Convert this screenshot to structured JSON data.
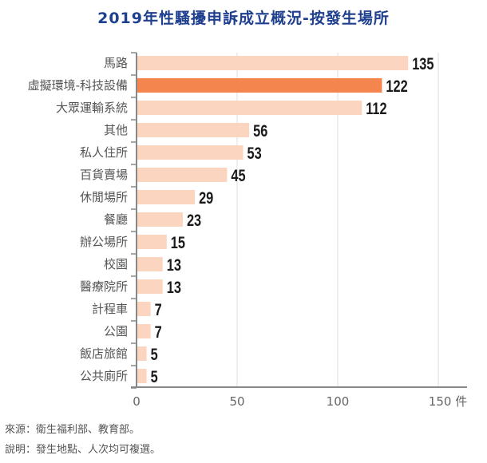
{
  "chart_data": {
    "type": "bar",
    "orientation": "horizontal",
    "title": "2019年性騷擾申訴成立概況-按發生場所",
    "categories": [
      "馬路",
      "虛擬環境-科技設備",
      "大眾運輸系統",
      "其他",
      "私人住所",
      "百貨賣場",
      "休閒場所",
      "餐廳",
      "辦公場所",
      "校園",
      "醫療院所",
      "計程車",
      "公園",
      "飯店旅館",
      "公共廁所"
    ],
    "values": [
      135,
      122,
      112,
      56,
      53,
      45,
      29,
      23,
      15,
      13,
      13,
      7,
      7,
      5,
      5
    ],
    "highlight_index": 1,
    "xlabel": "",
    "ylabel": "",
    "xlim": [
      0,
      155
    ],
    "xticks": [
      0,
      50,
      100,
      150
    ],
    "xtick_labels": [
      "0",
      "50",
      "100",
      "150 件"
    ],
    "grid": "vertical",
    "colors": {
      "bar": "#fcd5c0",
      "highlight": "#f5854f",
      "title": "#1f3f8f",
      "axis": "#888888",
      "grid": "#dddddd"
    }
  },
  "footnotes": {
    "source": "來源：衛生福利部、教育部。",
    "note": "說明：發生地點、人次均可複選。"
  }
}
